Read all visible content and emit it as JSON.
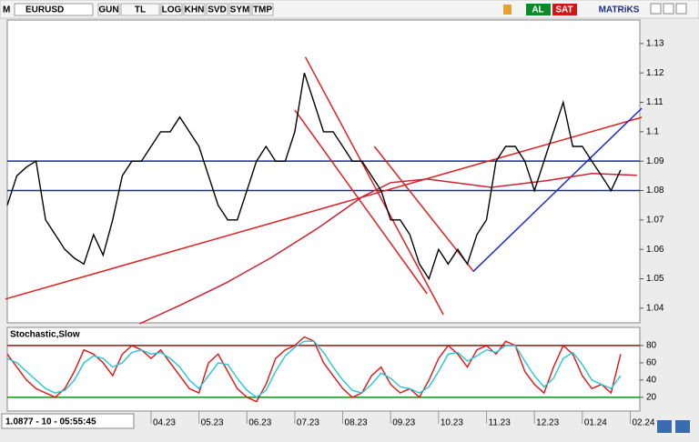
{
  "toolbar": {
    "menu": "M",
    "symbol": "EURUSD",
    "buttons": [
      "GUN",
      "TL",
      "LOG",
      "KHN",
      "SVD",
      "SYM",
      "TMP"
    ],
    "buy": "AL",
    "sell": "SAT",
    "brand": "MATRiKS"
  },
  "status": "1.0877 - 10 - 05:55:45",
  "chart_data": [
    {
      "type": "line",
      "xlim": [
        0,
        66
      ],
      "ylim": [
        1.035,
        1.138
      ],
      "yticks": [
        1.13,
        1.12,
        1.11,
        1.1,
        1.09,
        1.08,
        1.07,
        1.06,
        1.05,
        1.04
      ],
      "series": [
        {
          "color": "#000000",
          "values": [
            1.075,
            1.085,
            1.088,
            1.09,
            1.07,
            1.065,
            1.06,
            1.057,
            1.055,
            1.065,
            1.058,
            1.07,
            1.085,
            1.09,
            1.09,
            1.095,
            1.1,
            1.1,
            1.105,
            1.1,
            1.095,
            1.085,
            1.075,
            1.07,
            1.07,
            1.08,
            1.09,
            1.095,
            1.09,
            1.09,
            1.1,
            1.12,
            1.11,
            1.1,
            1.1,
            1.095,
            1.09,
            1.09,
            1.085,
            1.08,
            1.07,
            1.07,
            1.065,
            1.055,
            1.05,
            1.06,
            1.055,
            1.06,
            1.055,
            1.065,
            1.07,
            1.09,
            1.095,
            1.095,
            1.09,
            1.08,
            1.09,
            1.1,
            1.11,
            1.095,
            1.095,
            1.09,
            1.085,
            1.08,
            1.087
          ]
        }
      ],
      "hlines": [
        {
          "value": 1.09,
          "color": "#1c2a9c"
        },
        {
          "value": 1.08,
          "color": "#1c2a9c"
        }
      ],
      "lines": [
        {
          "color": "#e02020",
          "x": [
            -0.2,
            66.2
          ],
          "y": [
            1.0431,
            1.1049
          ]
        },
        {
          "color": "#e02020",
          "x": [
            31.1,
            45.5
          ],
          "y": [
            1.1254,
            1.0378
          ]
        },
        {
          "color": "#e02020",
          "x": [
            30,
            43.8
          ],
          "y": [
            1.1074,
            1.0449
          ]
        },
        {
          "color": "#e02020",
          "x": [
            38.3,
            48.6
          ],
          "y": [
            1.095,
            1.0527
          ]
        },
        {
          "color": "#1c2ad0",
          "x": [
            48.6,
            66.2
          ],
          "y": [
            1.0524,
            1.108
          ]
        },
        {
          "color": "#d02030",
          "x": [
            13.8,
            18.1,
            22.9,
            27.6,
            32.4,
            37.1,
            40,
            43.8,
            50.5,
            56.2,
            61,
            65.7
          ],
          "y": [
            1.0347,
            1.0411,
            1.0487,
            1.0573,
            1.0672,
            1.078,
            1.0827,
            1.0839,
            1.0811,
            1.0833,
            1.0858,
            1.0852
          ]
        }
      ]
    },
    {
      "type": "line",
      "title": "Stochastic,Slow",
      "xlim": [
        0,
        66
      ],
      "ylim": [
        4,
        101
      ],
      "yticks": [
        80,
        60,
        40,
        20
      ],
      "xticks": [
        {
          "value": 15,
          "label": "04.23"
        },
        {
          "value": 20,
          "label": "05.23"
        },
        {
          "value": 25,
          "label": "06.23"
        },
        {
          "value": 30,
          "label": "07.23"
        },
        {
          "value": 35,
          "label": "08.23"
        },
        {
          "value": 40,
          "label": "09.23"
        },
        {
          "value": 45,
          "label": "10.23"
        },
        {
          "value": 50,
          "label": "11.23"
        },
        {
          "value": 55,
          "label": "12.23"
        },
        {
          "value": 60,
          "label": "01.24"
        },
        {
          "value": 65,
          "label": "02.24"
        }
      ],
      "hlines": [
        {
          "value": 80,
          "color": "#a01010"
        },
        {
          "value": 20,
          "color": "#109010"
        }
      ],
      "series": [
        {
          "color": "#e81010",
          "values": [
            70,
            55,
            40,
            30,
            25,
            20,
            30,
            50,
            75,
            70,
            60,
            45,
            70,
            80,
            75,
            65,
            75,
            60,
            45,
            30,
            25,
            60,
            70,
            50,
            30,
            20,
            15,
            35,
            65,
            75,
            80,
            90,
            85,
            60,
            45,
            30,
            20,
            25,
            45,
            55,
            35,
            25,
            30,
            20,
            40,
            65,
            80,
            70,
            55,
            75,
            80,
            70,
            85,
            80,
            50,
            35,
            25,
            55,
            80,
            70,
            45,
            30,
            35,
            25,
            70
          ]
        },
        {
          "color": "#20c8d8",
          "values": [
            65,
            60,
            50,
            40,
            30,
            25,
            28,
            40,
            60,
            68,
            65,
            55,
            60,
            72,
            75,
            70,
            72,
            65,
            55,
            40,
            30,
            45,
            60,
            58,
            42,
            28,
            20,
            28,
            50,
            68,
            78,
            85,
            85,
            72,
            55,
            40,
            28,
            25,
            35,
            48,
            42,
            32,
            30,
            25,
            32,
            50,
            70,
            72,
            62,
            68,
            75,
            72,
            80,
            80,
            62,
            45,
            32,
            42,
            65,
            72,
            58,
            40,
            35,
            30,
            45
          ]
        }
      ]
    }
  ]
}
